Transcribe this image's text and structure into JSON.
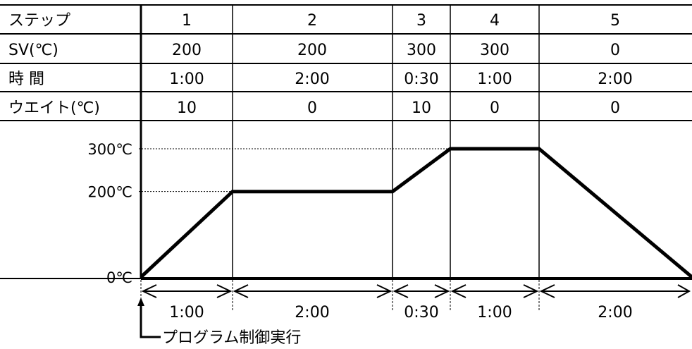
{
  "table": {
    "header_label": "ステップ",
    "steps": [
      "1",
      "2",
      "3",
      "4",
      "5"
    ],
    "rows": [
      {
        "label": "SV(℃)",
        "values": [
          "200",
          "200",
          "300",
          "300",
          "0"
        ]
      },
      {
        "label": "時 間",
        "values": [
          "1:00",
          "2:00",
          "0:30",
          "1:00",
          "2:00"
        ]
      },
      {
        "label": "ウエイト(℃)",
        "values": [
          "10",
          "0",
          "10",
          "0",
          "0"
        ]
      }
    ]
  },
  "chart_data": {
    "type": "line",
    "y_ticks": [
      {
        "value": 300,
        "label": "300℃"
      },
      {
        "value": 200,
        "label": "200℃"
      },
      {
        "value": 0,
        "label": "0℃"
      }
    ],
    "ylim": [
      0,
      300
    ],
    "x_hours": [
      0,
      1,
      3,
      3.5,
      4.5,
      6.5
    ],
    "y_values": [
      0,
      200,
      200,
      300,
      300,
      0
    ],
    "durations": [
      "1:00",
      "2:00",
      "0:30",
      "1:00",
      "2:00"
    ],
    "start_label": "プログラム制御実行",
    "line_color": "#000000"
  }
}
